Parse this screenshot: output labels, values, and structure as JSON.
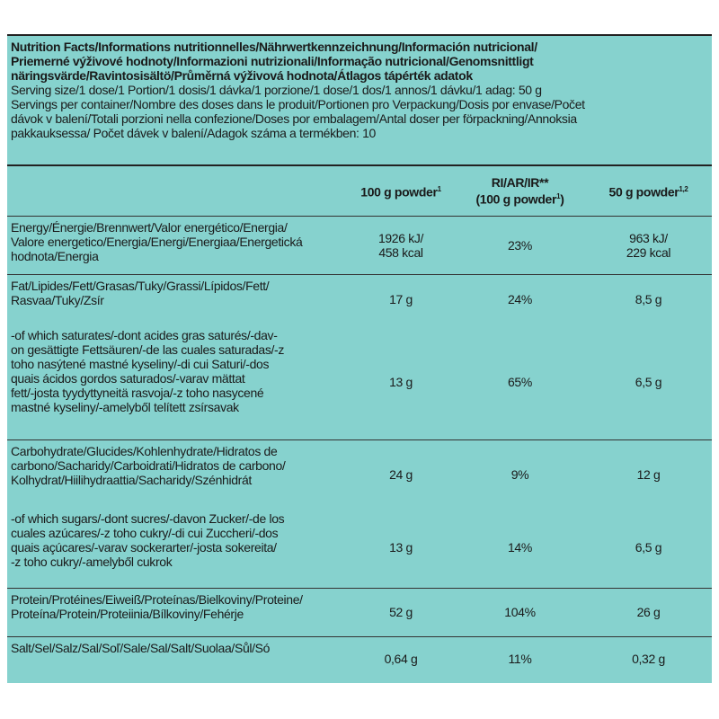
{
  "header": {
    "title_lines": [
      "Nutrition Facts/Informations nutritionnelles/Nährwertkennzeichnung/Información nutricional/",
      "Priemerné výživové hodnoty/Informazioni nutrizionali/Informação nutricional/Genomsnittligt",
      "näringsvärde/Ravintosisältö/Průměrná výživová hodnota/Átlagos tápérték adatok"
    ],
    "serving_size": "Serving size/1 dose/1 Portion/1 dosis/1 dávka/1 porzione/1 dose/1 dos/1 annos/1 dávku/1 adag: 50 g",
    "servings_lines": [
      "Servings per container/Nombre des doses dans le produit/Portionen pro Verpackung/Dosis por envase/Počet",
      "dávok v balení/Totali porzioni nella confezione/Doses por embalagem/Antal doser per förpackning/Annoksia",
      "pakkauksessa/ Počet dávek v balení/Adagok száma a termékben: 10"
    ]
  },
  "table": {
    "columns": [
      {
        "lines": [
          {
            "text": "100 g powder",
            "note": "1"
          }
        ]
      },
      {
        "lines": [
          {
            "text": "RI/AR/IR**"
          },
          {
            "text": "(100 g powder",
            "note": "1",
            "suffix": ")"
          }
        ]
      },
      {
        "lines": [
          {
            "text": "50 g powder",
            "note": "1,2"
          }
        ]
      }
    ],
    "groups": [
      [
        {
          "label": [
            "Energy/Énergie/Brennwert/Valor energético/Energia/",
            "Valore energetico/Energia/Energi/Energiaa/Energetická",
            "hodnota/Energia"
          ],
          "cells": [
            [
              "1926 kJ/",
              "458 kcal"
            ],
            [
              "23%"
            ],
            [
              "963 kJ/",
              "229 kcal"
            ]
          ]
        }
      ],
      [
        {
          "label": [
            "Fat/Lipides/Fett/Grasas/Tuky/Grassi/Lípidos/Fett/",
            "Rasvaa/Tuky/Zsír"
          ],
          "cells": [
            [
              "17 g"
            ],
            [
              "24%"
            ],
            [
              "8,5 g"
            ]
          ]
        },
        {
          "label": [
            "-of which saturates/-dont acides gras saturés/-dav-",
            "on gesättigte Fettsäuren/-de las cuales saturadas/-z",
            "toho nasýtené mastné kyseliny/-di cui Saturi/-dos",
            "quais ácidos gordos saturados/-varav mättat",
            "fett/-josta tyydyttyneitä rasvoja/-z toho nasycené",
            "mastné kyseliny/-amelyből telített zsírsavak"
          ],
          "cells": [
            [
              "13 g"
            ],
            [
              "65%"
            ],
            [
              "6,5 g"
            ]
          ]
        }
      ],
      [
        {
          "label": [
            "Carbohydrate/Glucides/Kohlenhydrate/Hidratos de",
            "carbono/Sacharidy/Carboidrati/Hidratos de carbono/",
            "Kolhydrat/Hiilihydraattia/Sacharidy/Szénhidrát"
          ],
          "cells": [
            [
              "24 g"
            ],
            [
              "9%"
            ],
            [
              "12 g"
            ]
          ]
        },
        {
          "label": [
            "-of which sugars/-dont sucres/-davon Zucker/-de los",
            "cuales azúcares/-z toho cukry/-di cui Zuccheri/-dos",
            "quais açúcares/-varav sockerarter/-josta sokereita/",
            "-z toho cukry/-amelyből cukrok"
          ],
          "cells": [
            [
              "13 g"
            ],
            [
              "14%"
            ],
            [
              "6,5 g"
            ]
          ]
        }
      ],
      [
        {
          "label": [
            "Protein/Protéines/Eiweiß/Proteínas/Bielkoviny/Proteine/",
            "Proteína/Protein/Proteiinia/Bílkoviny/Fehérje"
          ],
          "cells": [
            [
              "52 g"
            ],
            [
              "104%"
            ],
            [
              "26 g"
            ]
          ]
        }
      ],
      [
        {
          "label": [
            "Salt/Sel/Salz/Sal/Soľ/Sale/Sal/Salt/Suolaa/Sůl/Só"
          ],
          "cells": [
            [
              "0,64 g"
            ],
            [
              "11%"
            ],
            [
              "0,32 g"
            ]
          ]
        }
      ]
    ]
  }
}
